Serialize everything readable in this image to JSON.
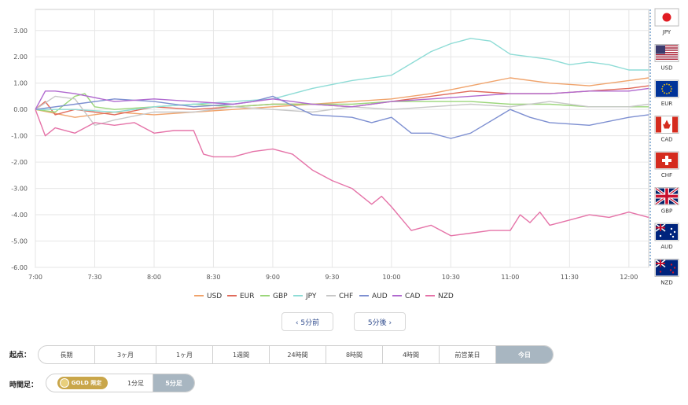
{
  "chart_data": {
    "type": "line",
    "ylim": [
      -6.0,
      3.8
    ],
    "y_ticks": [
      "3.00",
      "2.00",
      "1.00",
      "0.00",
      "-1.00",
      "-2.00",
      "-3.00",
      "-4.00",
      "-5.00",
      "-6.00"
    ],
    "x_ticks": [
      "7:00",
      "7:30",
      "8:00",
      "8:30",
      "9:00",
      "9:30",
      "10:00",
      "10:30",
      "11:00",
      "11:30",
      "12:00"
    ],
    "x_range_minutes": [
      0,
      310
    ],
    "grid": true,
    "legend_position": "bottom",
    "series": [
      {
        "name": "USD",
        "color": "#f0a36b",
        "x": [
          0,
          20,
          40,
          60,
          80,
          100,
          120,
          140,
          160,
          180,
          200,
          220,
          240,
          260,
          280,
          300,
          310
        ],
        "values": [
          0.0,
          -0.3,
          -0.1,
          -0.2,
          -0.1,
          0.0,
          0.1,
          0.2,
          0.3,
          0.4,
          0.6,
          0.9,
          1.2,
          1.0,
          0.9,
          1.1,
          1.2
        ]
      },
      {
        "name": "EUR",
        "color": "#e06a5a",
        "x": [
          0,
          5,
          10,
          20,
          40,
          60,
          80,
          100,
          120,
          140,
          160,
          180,
          200,
          220,
          240,
          260,
          280,
          300,
          310
        ],
        "values": [
          0.0,
          0.3,
          -0.2,
          0.0,
          -0.2,
          0.1,
          0.0,
          0.1,
          0.2,
          0.2,
          0.1,
          0.3,
          0.5,
          0.7,
          0.6,
          0.6,
          0.7,
          0.8,
          0.9
        ]
      },
      {
        "name": "GBP",
        "color": "#9bd67a",
        "x": [
          0,
          10,
          20,
          25,
          30,
          40,
          60,
          80,
          100,
          120,
          140,
          160,
          180,
          200,
          220,
          240,
          260,
          280,
          300,
          310
        ],
        "values": [
          0.0,
          -0.1,
          0.5,
          0.6,
          0.1,
          0.0,
          0.1,
          0.2,
          0.1,
          0.2,
          0.2,
          0.2,
          0.3,
          0.3,
          0.3,
          0.2,
          0.2,
          0.1,
          0.1,
          0.1
        ]
      },
      {
        "name": "JPY",
        "color": "#8edcd6",
        "x": [
          0,
          20,
          40,
          60,
          80,
          100,
          120,
          140,
          160,
          180,
          200,
          210,
          215,
          220,
          230,
          240,
          250,
          260,
          270,
          280,
          290,
          300,
          310
        ],
        "values": [
          0.0,
          0.0,
          -0.1,
          0.1,
          0.2,
          0.3,
          0.4,
          0.8,
          1.1,
          1.3,
          2.2,
          2.5,
          2.6,
          2.7,
          2.6,
          2.1,
          2.0,
          1.9,
          1.7,
          1.8,
          1.7,
          1.5,
          1.5
        ]
      },
      {
        "name": "CHF",
        "color": "#c8c8c8",
        "x": [
          0,
          10,
          20,
          30,
          40,
          60,
          80,
          100,
          120,
          140,
          160,
          180,
          200,
          220,
          240,
          260,
          280,
          300,
          310
        ],
        "values": [
          0.0,
          0.5,
          0.4,
          -0.6,
          -0.4,
          -0.1,
          -0.1,
          0.1,
          0.0,
          -0.1,
          0.1,
          0.0,
          0.1,
          0.2,
          0.1,
          0.3,
          0.1,
          0.1,
          0.2
        ]
      },
      {
        "name": "AUD",
        "color": "#7d8fd1",
        "x": [
          0,
          20,
          40,
          60,
          80,
          100,
          110,
          120,
          140,
          160,
          170,
          180,
          190,
          200,
          210,
          220,
          240,
          250,
          260,
          280,
          300,
          310
        ],
        "values": [
          0.0,
          0.2,
          0.4,
          0.3,
          0.1,
          0.2,
          0.3,
          0.5,
          -0.2,
          -0.3,
          -0.5,
          -0.3,
          -0.9,
          -0.9,
          -1.1,
          -0.9,
          0.0,
          -0.3,
          -0.5,
          -0.6,
          -0.3,
          -0.2
        ]
      },
      {
        "name": "CAD",
        "color": "#b069cf",
        "x": [
          0,
          5,
          10,
          20,
          40,
          60,
          80,
          100,
          120,
          140,
          160,
          180,
          200,
          220,
          240,
          260,
          280,
          300,
          310
        ],
        "values": [
          0.0,
          0.7,
          0.7,
          0.6,
          0.3,
          0.4,
          0.3,
          0.2,
          0.4,
          0.2,
          0.1,
          0.3,
          0.4,
          0.5,
          0.6,
          0.6,
          0.7,
          0.7,
          0.8
        ]
      },
      {
        "name": "NZD",
        "color": "#e573a8",
        "x": [
          0,
          5,
          10,
          20,
          30,
          40,
          50,
          60,
          70,
          80,
          85,
          90,
          100,
          110,
          120,
          130,
          140,
          150,
          160,
          170,
          175,
          180,
          190,
          200,
          210,
          220,
          230,
          240,
          245,
          250,
          255,
          260,
          270,
          280,
          290,
          300,
          310
        ],
        "values": [
          0.0,
          -1.0,
          -0.7,
          -0.9,
          -0.5,
          -0.6,
          -0.5,
          -0.9,
          -0.8,
          -0.8,
          -1.7,
          -1.8,
          -1.8,
          -1.6,
          -1.5,
          -1.7,
          -2.3,
          -2.7,
          -3.0,
          -3.6,
          -3.3,
          -3.7,
          -4.6,
          -4.4,
          -4.8,
          -4.7,
          -4.6,
          -4.6,
          -4.0,
          -4.3,
          -3.9,
          -4.4,
          -4.2,
          -4.0,
          -4.1,
          -3.9,
          -4.1
        ]
      }
    ],
    "flags": [
      {
        "code": "JPY",
        "color": "#e11b22",
        "bg": "#ffffff",
        "icon": "japan-flag-icon"
      },
      {
        "code": "USD",
        "color": "#b22234",
        "bg": "#3c3b6e",
        "icon": "us-flag-icon"
      },
      {
        "code": "EUR",
        "color": "#ffcc00",
        "bg": "#003399",
        "icon": "eu-flag-icon"
      },
      {
        "code": "CAD",
        "color": "#d52b1e",
        "bg": "#ffffff",
        "icon": "canada-flag-icon"
      },
      {
        "code": "CHF",
        "color": "#ffffff",
        "bg": "#d52b1e",
        "icon": "swiss-flag-icon"
      },
      {
        "code": "GBP",
        "color": "#c8102e",
        "bg": "#012169",
        "icon": "uk-flag-icon"
      },
      {
        "code": "AUD",
        "color": "#ffffff",
        "bg": "#00247d",
        "icon": "australia-flag-icon"
      },
      {
        "code": "NZD",
        "color": "#cc142b",
        "bg": "#00247d",
        "icon": "new-zealand-flag-icon"
      }
    ]
  },
  "nav": {
    "prev_label": "‹ 5分前",
    "next_label": "5分後 ›"
  },
  "start_point": {
    "label": "起点：",
    "options": [
      "長期",
      "3ヶ月",
      "1ヶ月",
      "1週間",
      "24時間",
      "8時間",
      "4時間",
      "前営業日",
      "今日"
    ],
    "selected": "今日"
  },
  "timeframe": {
    "label": "時間足：",
    "gold_label": "GOLD 限定",
    "options": [
      "1分足",
      "5分足"
    ],
    "selected": "5分足"
  }
}
